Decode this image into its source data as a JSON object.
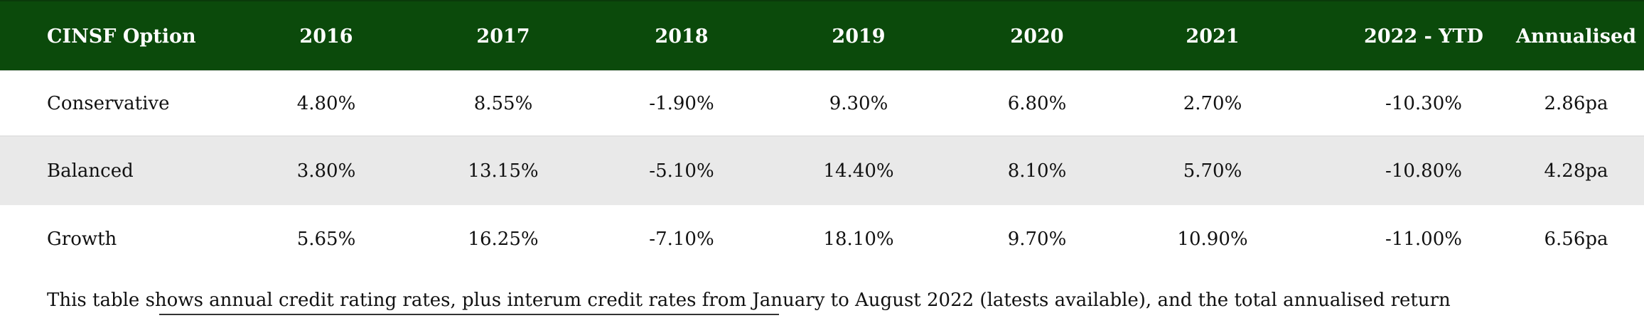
{
  "table": {
    "headers": [
      "CINSF Option",
      "2016",
      "2017",
      "2018",
      "2019",
      "2020",
      "2021",
      "2022 - YTD",
      "Annualised"
    ],
    "rows": [
      [
        "Conservative",
        "4.80%",
        "8.55%",
        "-1.90%",
        "9.30%",
        "6.80%",
        "2.70%",
        "-10.30%",
        "2.86pa"
      ],
      [
        "Balanced",
        "3.80%",
        "13.15%",
        "-5.10%",
        "14.40%",
        "8.10%",
        "5.70%",
        "-10.80%",
        "4.28pa"
      ],
      [
        "Growth",
        "5.65%",
        "16.25%",
        "-7.10%",
        "18.10%",
        "9.70%",
        "10.90%",
        "-11.00%",
        "6.56pa"
      ]
    ]
  },
  "caption": "This table shows annual credit rating rates, plus interum credit rates from January to August 2022 (latests available), and the total annualised return",
  "colors": {
    "header_bg": "#0b4a0b",
    "header_text": "#ffffff",
    "alt_row_bg": "#e9e9e9"
  }
}
